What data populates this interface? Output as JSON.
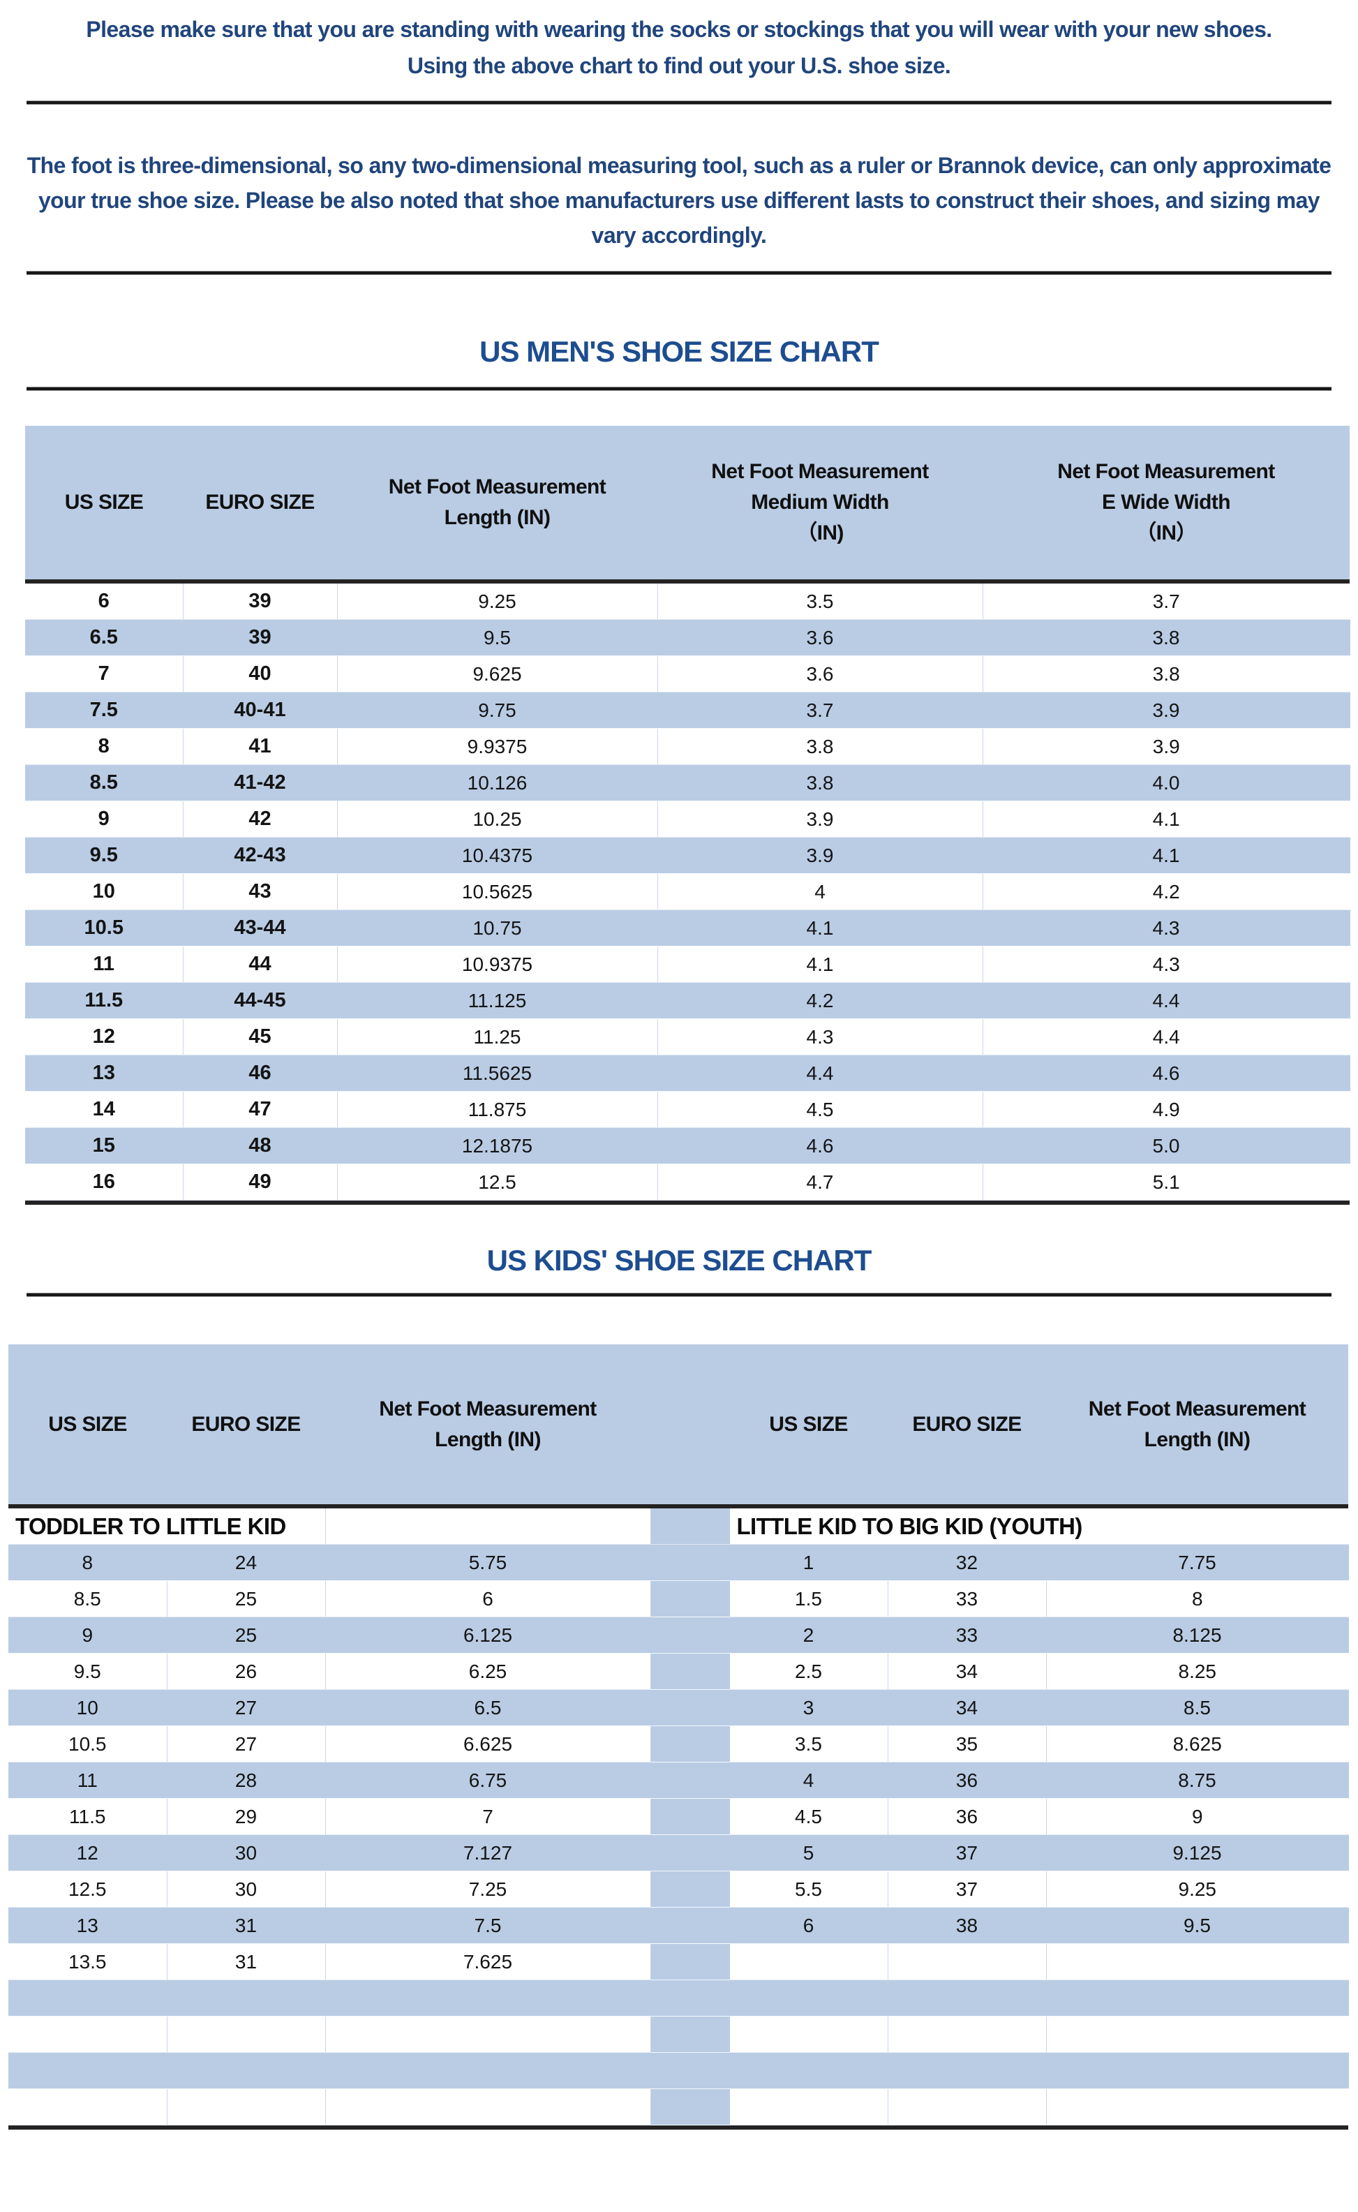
{
  "intro": {
    "line1": "Please make sure that you are standing with wearing the socks or stockings that you will wear with your new shoes.",
    "line2": "Using the above chart to find out your U.S. shoe size."
  },
  "note": "The foot is three-dimensional, so any two-dimensional measuring tool, such as a ruler or Brannok device, can only approximate your true shoe size. Please be also noted that shoe manufacturers use different lasts to construct their shoes, and sizing may vary accordingly.",
  "colors": {
    "accent_blue": "#b9cce4",
    "title_blue": "#1d4d90",
    "body_text_blue": "#20457c",
    "rule_black": "#161616"
  },
  "mens_chart": {
    "title": "US MEN'S SHOE SIZE CHART",
    "columns": [
      "US SIZE",
      "EURO SIZE",
      "Net Foot Measurement\nLength (IN)",
      "Net Foot Measurement\nMedium Width\n（IN)",
      "Net Foot Measurement\nE Wide Width\n（IN）"
    ],
    "rows": [
      [
        "6",
        "39",
        "9.25",
        "3.5",
        "3.7"
      ],
      [
        "6.5",
        "39",
        "9.5",
        "3.6",
        "3.8"
      ],
      [
        "7",
        "40",
        "9.625",
        "3.6",
        "3.8"
      ],
      [
        "7.5",
        "40-41",
        "9.75",
        "3.7",
        "3.9"
      ],
      [
        "8",
        "41",
        "9.9375",
        "3.8",
        "3.9"
      ],
      [
        "8.5",
        "41-42",
        "10.126",
        "3.8",
        "4.0"
      ],
      [
        "9",
        "42",
        "10.25",
        "3.9",
        "4.1"
      ],
      [
        "9.5",
        "42-43",
        "10.4375",
        "3.9",
        "4.1"
      ],
      [
        "10",
        "43",
        "10.5625",
        "4",
        "4.2"
      ],
      [
        "10.5",
        "43-44",
        "10.75",
        "4.1",
        "4.3"
      ],
      [
        "11",
        "44",
        "10.9375",
        "4.1",
        "4.3"
      ],
      [
        "11.5",
        "44-45",
        "11.125",
        "4.2",
        "4.4"
      ],
      [
        "12",
        "45",
        "11.25",
        "4.3",
        "4.4"
      ],
      [
        "13",
        "46",
        "11.5625",
        "4.4",
        "4.6"
      ],
      [
        "14",
        "47",
        "11.875",
        "4.5",
        "4.9"
      ],
      [
        "15",
        "48",
        "12.1875",
        "4.6",
        "5.0"
      ],
      [
        "16",
        "49",
        "12.5",
        "4.7",
        "5.1"
      ]
    ]
  },
  "kids_chart": {
    "title": "US KIDS' SHOE SIZE CHART",
    "columns_left": [
      "US SIZE",
      "EURO SIZE",
      "Net Foot Measurement\nLength (IN)"
    ],
    "columns_right": [
      "US SIZE",
      "EURO SIZE",
      "Net Foot Measurement\nLength (IN)"
    ],
    "section_left": "TODDLER TO LITTLE KID",
    "section_right": "LITTLE KID TO BIG KID (YOUTH)",
    "rows_left": [
      [
        "8",
        "24",
        "5.75"
      ],
      [
        "8.5",
        "25",
        "6"
      ],
      [
        "9",
        "25",
        "6.125"
      ],
      [
        "9.5",
        "26",
        "6.25"
      ],
      [
        "10",
        "27",
        "6.5"
      ],
      [
        "10.5",
        "27",
        "6.625"
      ],
      [
        "11",
        "28",
        "6.75"
      ],
      [
        "11.5",
        "29",
        "7"
      ],
      [
        "12",
        "30",
        "7.127"
      ],
      [
        "12.5",
        "30",
        "7.25"
      ],
      [
        "13",
        "31",
        "7.5"
      ],
      [
        "13.5",
        "31",
        "7.625"
      ]
    ],
    "rows_right": [
      [
        "1",
        "32",
        "7.75"
      ],
      [
        "1.5",
        "33",
        "8"
      ],
      [
        "2",
        "33",
        "8.125"
      ],
      [
        "2.5",
        "34",
        "8.25"
      ],
      [
        "3",
        "34",
        "8.5"
      ],
      [
        "3.5",
        "35",
        "8.625"
      ],
      [
        "4",
        "36",
        "8.75"
      ],
      [
        "4.5",
        "36",
        "9"
      ],
      [
        "5",
        "37",
        "9.125"
      ],
      [
        "5.5",
        "37",
        "9.25"
      ],
      [
        "6",
        "38",
        "9.5"
      ],
      [
        "",
        "",
        ""
      ]
    ],
    "trailing_empty_rows": 4
  }
}
